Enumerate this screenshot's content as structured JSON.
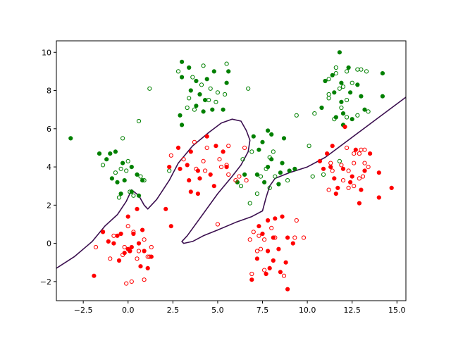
{
  "chart_data": {
    "type": "scatter",
    "title": "",
    "xlabel": "",
    "ylabel": "",
    "xlim": [
      -4,
      15.5
    ],
    "ylim": [
      -3,
      10.6
    ],
    "grid": false,
    "legend": "none",
    "xticks": [
      -2.5,
      0,
      2.5,
      5,
      7.5,
      10,
      12.5,
      15
    ],
    "xtick_labels": [
      "−2.5",
      "0.0",
      "2.5",
      "5.0",
      "7.5",
      "10.0",
      "12.5",
      "15.0"
    ],
    "yticks": [
      -2,
      0,
      2,
      4,
      6,
      8,
      10
    ],
    "ytick_labels": [
      "−2",
      "0",
      "2",
      "4",
      "6",
      "8",
      "10"
    ],
    "colors": {
      "class_0": "#008000",
      "class_1": "#ff0000",
      "boundary": "#3b0f4f"
    },
    "series": [
      {
        "class": "green",
        "marker": "filled",
        "points": [
          [
            -3.2,
            5.5
          ],
          [
            -1.6,
            4.7
          ],
          [
            -1.0,
            4.7
          ],
          [
            -0.7,
            4.8
          ],
          [
            -1.2,
            4.4
          ],
          [
            -0.3,
            4.2
          ],
          [
            0.2,
            4.0
          ],
          [
            -0.9,
            3.4
          ],
          [
            -0.6,
            3.2
          ],
          [
            -0.2,
            3.3
          ],
          [
            0.5,
            3.6
          ],
          [
            0.8,
            3.3
          ],
          [
            0.2,
            2.7
          ],
          [
            -0.4,
            2.6
          ],
          [
            0.6,
            2.5
          ],
          [
            3.0,
            9.5
          ],
          [
            3.4,
            9.2
          ],
          [
            3.0,
            8.7
          ],
          [
            3.8,
            8.5
          ],
          [
            4.4,
            8.6
          ],
          [
            4.8,
            9.0
          ],
          [
            5.6,
            9.0
          ],
          [
            5.5,
            8.4
          ],
          [
            3.5,
            8.0
          ],
          [
            4.0,
            7.8
          ],
          [
            4.3,
            7.5
          ],
          [
            3.8,
            7.2
          ],
          [
            4.7,
            7.0
          ],
          [
            4.2,
            6.9
          ],
          [
            2.9,
            6.7
          ],
          [
            3.0,
            6.2
          ],
          [
            5.3,
            7.0
          ],
          [
            7.0,
            5.6
          ],
          [
            7.8,
            5.9
          ],
          [
            8.0,
            5.7
          ],
          [
            7.5,
            5.3
          ],
          [
            8.7,
            5.5
          ],
          [
            7.3,
            4.9
          ],
          [
            8.0,
            4.4
          ],
          [
            8.6,
            4.2
          ],
          [
            7.8,
            4.0
          ],
          [
            7.2,
            3.6
          ],
          [
            8.5,
            3.7
          ],
          [
            9.0,
            3.8
          ],
          [
            7.6,
            3.2
          ],
          [
            8.4,
            3.1
          ],
          [
            6.1,
            3.2
          ],
          [
            6.5,
            3.6
          ],
          [
            9.3,
            3.9
          ],
          [
            11.8,
            10.0
          ],
          [
            12.3,
            9.2
          ],
          [
            11.4,
            8.8
          ],
          [
            11.0,
            8.5
          ],
          [
            11.9,
            8.4
          ],
          [
            12.8,
            8.3
          ],
          [
            14.2,
            8.9
          ],
          [
            11.5,
            7.9
          ],
          [
            12.4,
            7.9
          ],
          [
            13.0,
            7.7
          ],
          [
            11.9,
            7.4
          ],
          [
            10.8,
            7.1
          ],
          [
            12.0,
            6.8
          ],
          [
            13.2,
            7.0
          ],
          [
            11.6,
            6.6
          ],
          [
            12.5,
            6.5
          ],
          [
            12.0,
            6.2
          ],
          [
            14.2,
            7.7
          ]
        ]
      },
      {
        "class": "green",
        "marker": "hollow",
        "points": [
          [
            -0.3,
            5.5
          ],
          [
            0.6,
            6.4
          ],
          [
            1.2,
            8.1
          ],
          [
            -1.4,
            4.1
          ],
          [
            0.0,
            4.3
          ],
          [
            -0.4,
            3.9
          ],
          [
            -0.1,
            3.8
          ],
          [
            -0.7,
            3.7
          ],
          [
            0.7,
            3.5
          ],
          [
            0.9,
            3.3
          ],
          [
            0.1,
            2.7
          ],
          [
            -0.5,
            2.4
          ],
          [
            0.3,
            2.5
          ],
          [
            2.3,
            3.8
          ],
          [
            2.8,
            9.0
          ],
          [
            4.2,
            9.3
          ],
          [
            5.5,
            9.4
          ],
          [
            3.6,
            8.7
          ],
          [
            4.1,
            8.3
          ],
          [
            4.6,
            8.1
          ],
          [
            5.0,
            7.9
          ],
          [
            3.4,
            7.6
          ],
          [
            3.7,
            7.0
          ],
          [
            4.5,
            7.5
          ],
          [
            4.9,
            7.4
          ],
          [
            5.4,
            7.8
          ],
          [
            3.3,
            7.1
          ],
          [
            6.7,
            8.1
          ],
          [
            6.4,
            4.4
          ],
          [
            6.9,
            4.8
          ],
          [
            7.9,
            4.5
          ],
          [
            8.1,
            4.8
          ],
          [
            8.2,
            3.5
          ],
          [
            7.7,
            3.9
          ],
          [
            7.4,
            3.5
          ],
          [
            8.9,
            3.3
          ],
          [
            7.9,
            2.9
          ],
          [
            7.2,
            2.6
          ],
          [
            6.3,
            3.0
          ],
          [
            6.8,
            2.1
          ],
          [
            9.4,
            6.7
          ],
          [
            10.1,
            5.1
          ],
          [
            10.3,
            3.5
          ],
          [
            10.9,
            3.6
          ],
          [
            11.8,
            4.3
          ],
          [
            11.6,
            9.2
          ],
          [
            13.0,
            9.1
          ],
          [
            12.2,
            9.0
          ],
          [
            12.8,
            9.1
          ],
          [
            13.3,
            9.0
          ],
          [
            11.2,
            8.6
          ],
          [
            12.0,
            8.2
          ],
          [
            12.5,
            8.4
          ],
          [
            11.2,
            7.8
          ],
          [
            11.8,
            8.1
          ],
          [
            11.2,
            7.6
          ],
          [
            11.9,
            7.1
          ],
          [
            12.2,
            7.5
          ],
          [
            13.4,
            6.9
          ],
          [
            10.4,
            6.8
          ],
          [
            11.5,
            6.5
          ],
          [
            12.2,
            6.6
          ],
          [
            12.8,
            6.7
          ],
          [
            11.6,
            8.9
          ]
        ]
      },
      {
        "class": "red",
        "marker": "filled",
        "points": [
          [
            -1.9,
            -1.7
          ],
          [
            -1.4,
            0.6
          ],
          [
            -0.8,
            0.0
          ],
          [
            -0.4,
            0.5
          ],
          [
            0.0,
            1.4
          ],
          [
            0.3,
            0.5
          ],
          [
            -0.6,
            0.4
          ],
          [
            0.5,
            1.8
          ],
          [
            0.8,
            0.7
          ],
          [
            0.2,
            -0.2
          ],
          [
            -0.2,
            -0.5
          ],
          [
            0.6,
            0.0
          ],
          [
            -0.5,
            -0.9
          ],
          [
            0.0,
            -0.3
          ],
          [
            0.9,
            -0.4
          ],
          [
            0.7,
            -1.2
          ],
          [
            1.1,
            -1.3
          ],
          [
            1.3,
            -0.7
          ],
          [
            -1.1,
            0.1
          ],
          [
            0.1,
            -0.4
          ],
          [
            2.1,
            1.8
          ],
          [
            2.4,
            0.9
          ],
          [
            2.3,
            4.0
          ],
          [
            2.8,
            5.0
          ],
          [
            3.5,
            4.8
          ],
          [
            4.4,
            5.6
          ],
          [
            4.9,
            5.1
          ],
          [
            5.3,
            4.8
          ],
          [
            3.3,
            4.1
          ],
          [
            3.9,
            3.8
          ],
          [
            4.6,
            3.6
          ],
          [
            5.5,
            4.0
          ],
          [
            3.4,
            3.3
          ],
          [
            4.0,
            3.4
          ],
          [
            4.8,
            3.0
          ],
          [
            3.5,
            2.7
          ],
          [
            3.9,
            2.6
          ],
          [
            2.9,
            3.9
          ],
          [
            7.3,
            0.9
          ],
          [
            7.8,
            1.2
          ],
          [
            8.2,
            1.3
          ],
          [
            8.6,
            1.4
          ],
          [
            7.5,
            0.5
          ],
          [
            8.1,
            0.3
          ],
          [
            8.9,
            0.3
          ],
          [
            9.2,
            0.0
          ],
          [
            7.8,
            -0.4
          ],
          [
            8.4,
            -0.3
          ],
          [
            7.2,
            -0.8
          ],
          [
            8.1,
            -0.9
          ],
          [
            8.8,
            -1.0
          ],
          [
            7.9,
            -1.3
          ],
          [
            8.5,
            -1.5
          ],
          [
            6.9,
            -1.9
          ],
          [
            7.7,
            -1.6
          ],
          [
            8.9,
            -2.4
          ],
          [
            11.1,
            4.7
          ],
          [
            11.4,
            5.1
          ],
          [
            12.1,
            6.1
          ],
          [
            12.7,
            4.9
          ],
          [
            13.5,
            4.7
          ],
          [
            11.3,
            4.0
          ],
          [
            12.0,
            3.9
          ],
          [
            12.5,
            3.5
          ],
          [
            13.2,
            3.8
          ],
          [
            14.0,
            3.7
          ],
          [
            11.5,
            3.4
          ],
          [
            12.4,
            3.2
          ],
          [
            13.0,
            2.8
          ],
          [
            14.0,
            2.4
          ],
          [
            11.7,
            2.9
          ],
          [
            12.9,
            2.1
          ],
          [
            14.7,
            2.9
          ],
          [
            10.7,
            4.3
          ],
          [
            11.6,
            2.6
          ],
          [
            10.9,
            3.9
          ]
        ]
      },
      {
        "class": "red",
        "marker": "hollow",
        "points": [
          [
            -1.4,
            0.6
          ],
          [
            -1.8,
            -0.2
          ],
          [
            -1.0,
            -0.8
          ],
          [
            -0.8,
            0.4
          ],
          [
            0.0,
            0.9
          ],
          [
            0.3,
            0.6
          ],
          [
            0.1,
            -0.4
          ],
          [
            -0.2,
            -0.2
          ],
          [
            0.6,
            -0.4
          ],
          [
            1.1,
            -0.7
          ],
          [
            1.2,
            -0.7
          ],
          [
            0.9,
            0.2
          ],
          [
            1.3,
            -0.2
          ],
          [
            -0.3,
            -0.6
          ],
          [
            -0.1,
            -2.1
          ],
          [
            0.2,
            -2.0
          ],
          [
            0.9,
            -1.9
          ],
          [
            0.5,
            -0.8
          ],
          [
            2.4,
            4.6
          ],
          [
            3.7,
            5.3
          ],
          [
            4.4,
            5.0
          ],
          [
            5.6,
            5.1
          ],
          [
            6.5,
            5.0
          ],
          [
            3.1,
            4.4
          ],
          [
            4.2,
            4.3
          ],
          [
            5.1,
            4.4
          ],
          [
            5.5,
            4.1
          ],
          [
            3.8,
            3.9
          ],
          [
            4.3,
            3.8
          ],
          [
            5.2,
            4.0
          ],
          [
            5.6,
            3.6
          ],
          [
            6.2,
            3.5
          ],
          [
            6.0,
            3.3
          ],
          [
            5.0,
            1.0
          ],
          [
            6.6,
            3.3
          ],
          [
            7.0,
            0.6
          ],
          [
            7.6,
            0.2
          ],
          [
            8.0,
            0.8
          ],
          [
            7.3,
            0.4
          ],
          [
            8.2,
            0.3
          ],
          [
            6.8,
            0.2
          ],
          [
            7.4,
            -0.3
          ],
          [
            9.3,
            0.3
          ],
          [
            9.8,
            0.3
          ],
          [
            9.4,
            1.2
          ],
          [
            6.9,
            -1.6
          ],
          [
            7.6,
            -1.4
          ],
          [
            8.7,
            -1.7
          ],
          [
            7.2,
            -0.4
          ],
          [
            12.2,
            5.0
          ],
          [
            12.6,
            4.7
          ],
          [
            13.0,
            4.9
          ],
          [
            12.9,
            4.7
          ],
          [
            13.2,
            4.9
          ],
          [
            11.3,
            4.2
          ],
          [
            11.9,
            4.1
          ],
          [
            12.6,
            4.2
          ],
          [
            13.2,
            4.2
          ],
          [
            13.4,
            4.0
          ],
          [
            11.4,
            3.8
          ],
          [
            12.3,
            3.8
          ],
          [
            12.9,
            3.4
          ],
          [
            11.2,
            2.8
          ],
          [
            12.0,
            3.3
          ],
          [
            12.6,
            3.0
          ],
          [
            12.3,
            2.9
          ],
          [
            13.1,
            3.5
          ]
        ]
      }
    ],
    "decision_boundary": {
      "points": [
        [
          -4.0,
          -1.3
        ],
        [
          -3.0,
          -0.7
        ],
        [
          -2.0,
          0.1
        ],
        [
          -1.3,
          0.9
        ],
        [
          -0.6,
          1.5
        ],
        [
          -0.1,
          2.2
        ],
        [
          0.2,
          2.8
        ],
        [
          0.6,
          2.5
        ],
        [
          0.9,
          2.0
        ],
        [
          1.1,
          1.8
        ],
        [
          1.6,
          2.3
        ],
        [
          2.3,
          3.3
        ],
        [
          2.8,
          4.2
        ],
        [
          3.6,
          5.1
        ],
        [
          4.5,
          5.8
        ],
        [
          5.2,
          6.3
        ],
        [
          5.8,
          6.5
        ],
        [
          6.3,
          6.4
        ],
        [
          6.6,
          5.9
        ],
        [
          6.8,
          5.4
        ],
        [
          6.7,
          4.8
        ],
        [
          6.3,
          4.1
        ],
        [
          5.8,
          3.5
        ],
        [
          5.0,
          2.6
        ],
        [
          4.0,
          1.3
        ],
        [
          3.3,
          0.4
        ],
        [
          3.0,
          0.1
        ],
        [
          3.1,
          0.0
        ],
        [
          3.6,
          0.1
        ],
        [
          4.2,
          0.4
        ],
        [
          5.0,
          0.7
        ],
        [
          6.0,
          1.1
        ],
        [
          6.9,
          1.4
        ],
        [
          7.5,
          1.7
        ],
        [
          7.7,
          2.4
        ],
        [
          7.9,
          3.0
        ],
        [
          8.2,
          3.4
        ],
        [
          9.0,
          3.7
        ],
        [
          10.0,
          4.0
        ],
        [
          11.0,
          4.5
        ],
        [
          12.0,
          5.2
        ],
        [
          13.0,
          5.9
        ],
        [
          14.0,
          6.6
        ],
        [
          15.0,
          7.3
        ],
        [
          15.5,
          7.65
        ]
      ]
    }
  }
}
